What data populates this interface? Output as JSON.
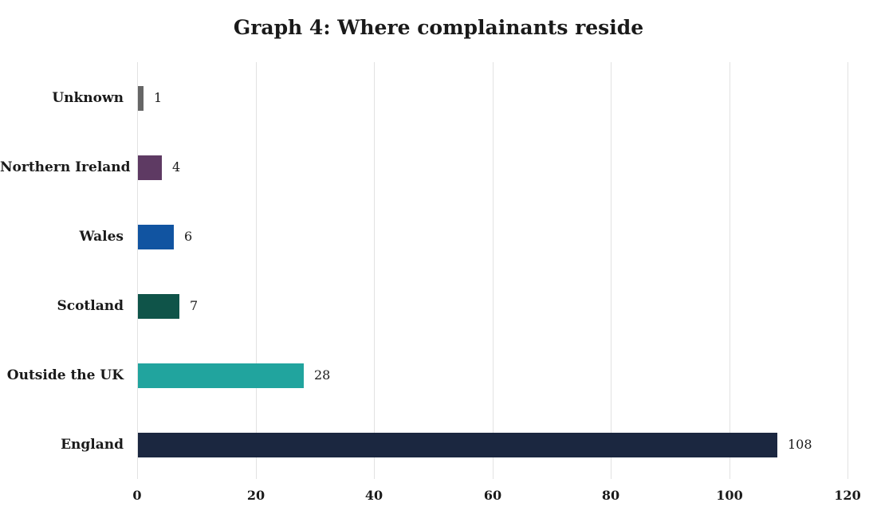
{
  "page": {
    "background": "#ffffff",
    "text_color": "#1a1a1a"
  },
  "chart_data": {
    "type": "bar",
    "orientation": "horizontal",
    "title": "Graph 4: Where complainants reside",
    "categories": [
      "Unknown",
      "Northern Ireland",
      "Wales",
      "Scotland",
      "Outside the UK",
      "England"
    ],
    "values": [
      1,
      4,
      6,
      7,
      28,
      108
    ],
    "data_labels": [
      "1",
      "4",
      "6",
      "7",
      "28",
      "108"
    ],
    "bar_colors": [
      "#666666",
      "#5e3a63",
      "#1154a1",
      "#0f5449",
      "#21a49e",
      "#1b2740"
    ],
    "xlabel": "",
    "ylabel": "",
    "xlim": [
      0,
      120
    ],
    "x_ticks": [
      0,
      20,
      40,
      60,
      80,
      100,
      120
    ],
    "grid": true,
    "grid_color": "#e2e2e2",
    "legend": "none"
  }
}
